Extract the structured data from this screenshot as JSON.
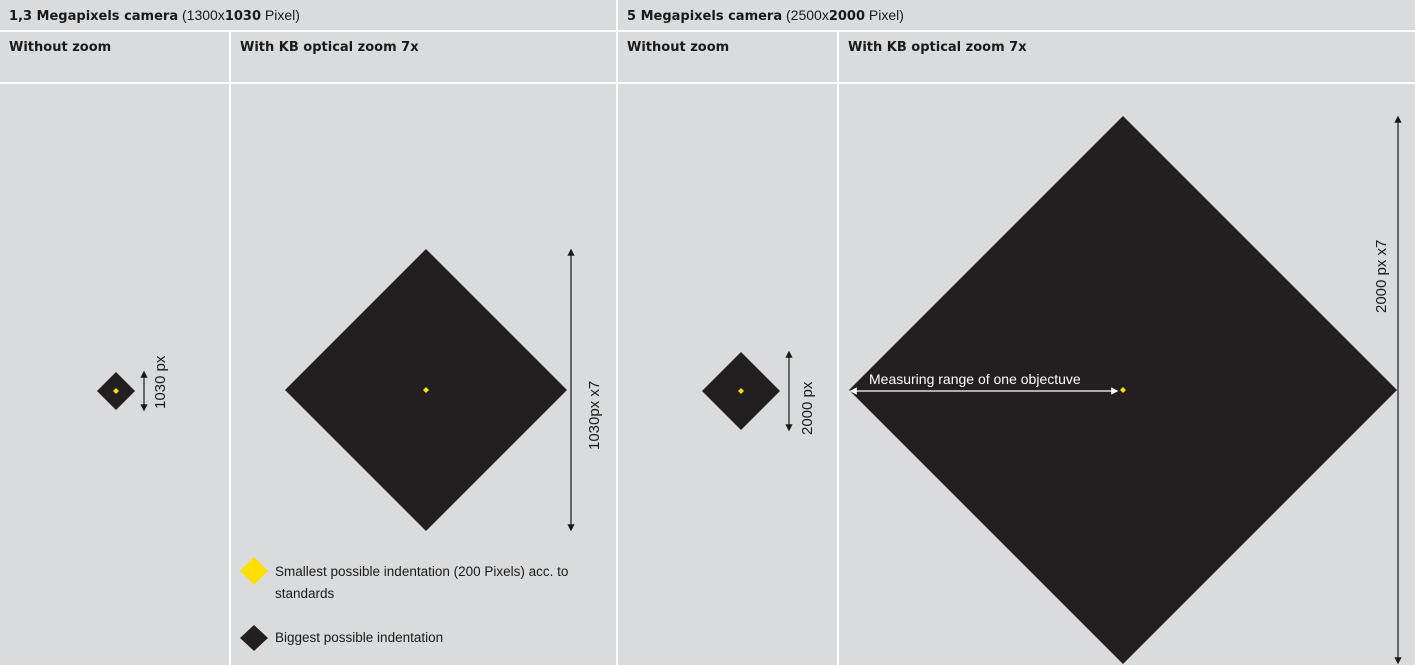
{
  "header": {
    "left": {
      "bold": "1,3 Megapixels camera",
      "pre": " (1300x",
      "bold2": "1030",
      "post": " Pixel)"
    },
    "right": {
      "bold": "5 Megapixels camera",
      "pre": " (2500x",
      "bold2": "2000",
      "post": " Pixel)"
    }
  },
  "columns": {
    "col1": "Without zoom",
    "col2": "With KB optical zoom 7x",
    "col3": "Without zoom",
    "col4": "With KB optical zoom 7x"
  },
  "labels": {
    "col1_dim": "1030 px",
    "col2_dim": "1030px x7",
    "col3_dim": "2000 px",
    "col4_dim": "2000 px x7",
    "measuring": "Measuring range of one objectuve"
  },
  "legend": {
    "smallest": "Smallest possible indentation (200 Pixels) acc. to standards",
    "biggest": "Biggest possible indentation"
  },
  "colors": {
    "indent_fill": "#231f20",
    "point_fill": "#ffde00",
    "cell_bg": "#dadbdc"
  }
}
